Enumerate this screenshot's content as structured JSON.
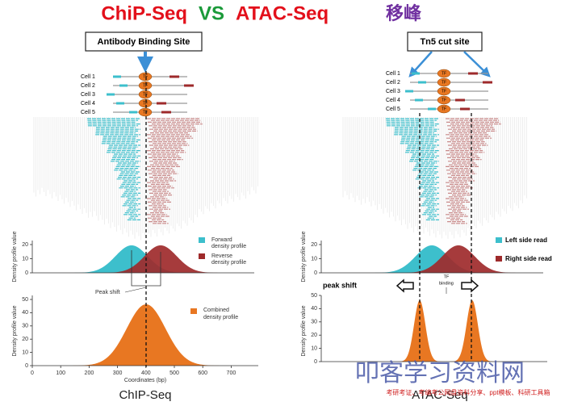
{
  "title": {
    "chip": "ChiP-Seq",
    "vs": "VS",
    "atac": "ATAC-Seq",
    "author": "移峰"
  },
  "left": {
    "callout": "Antibody Binding Site",
    "tf": "TF",
    "cells": [
      "Cell 1",
      "Cell 2",
      "Cell 3",
      "Cell 4",
      "Cell 5"
    ],
    "density_panel": {
      "ylabel": "Density profile value",
      "yticks": [
        0,
        10,
        20
      ],
      "legend": [
        [
          "Forward",
          "density profile"
        ],
        [
          "Reverse",
          "density profile"
        ]
      ],
      "annotation": "Peak shift"
    },
    "combined_panel": {
      "ylabel": "Density profile value",
      "yticks": [
        0,
        10,
        20,
        30,
        40,
        50
      ],
      "xticks": [
        0,
        100,
        200,
        300,
        400,
        500,
        600,
        700
      ],
      "xlabel": "Coordinates (bp)",
      "legend": [
        "Combined",
        "density profile"
      ]
    },
    "caption": "ChIP-Seq"
  },
  "right": {
    "callout": "Tn5 cut site",
    "tf": "TF",
    "cells": [
      "Cell 1",
      "Cell 2",
      "Cell 3",
      "Cell 4",
      "Cell 5"
    ],
    "density_panel": {
      "ylabel": "Density profile value",
      "yticks": [
        0,
        10,
        20
      ],
      "legend": [
        "Left side read",
        "Right side read"
      ],
      "annotation": "peak shift",
      "tf_binding": [
        "TF",
        "binding"
      ]
    },
    "combined_panel": {
      "ylabel": "Density profile value",
      "yticks": [
        0,
        10,
        20,
        30,
        40,
        50
      ]
    },
    "caption": "ATAC-Seq"
  },
  "watermark": {
    "title": "叩客学习资料网",
    "subtitle": "考研考证、考编考公网盘资料分享、ppt模板、科研工具箱"
  }
}
